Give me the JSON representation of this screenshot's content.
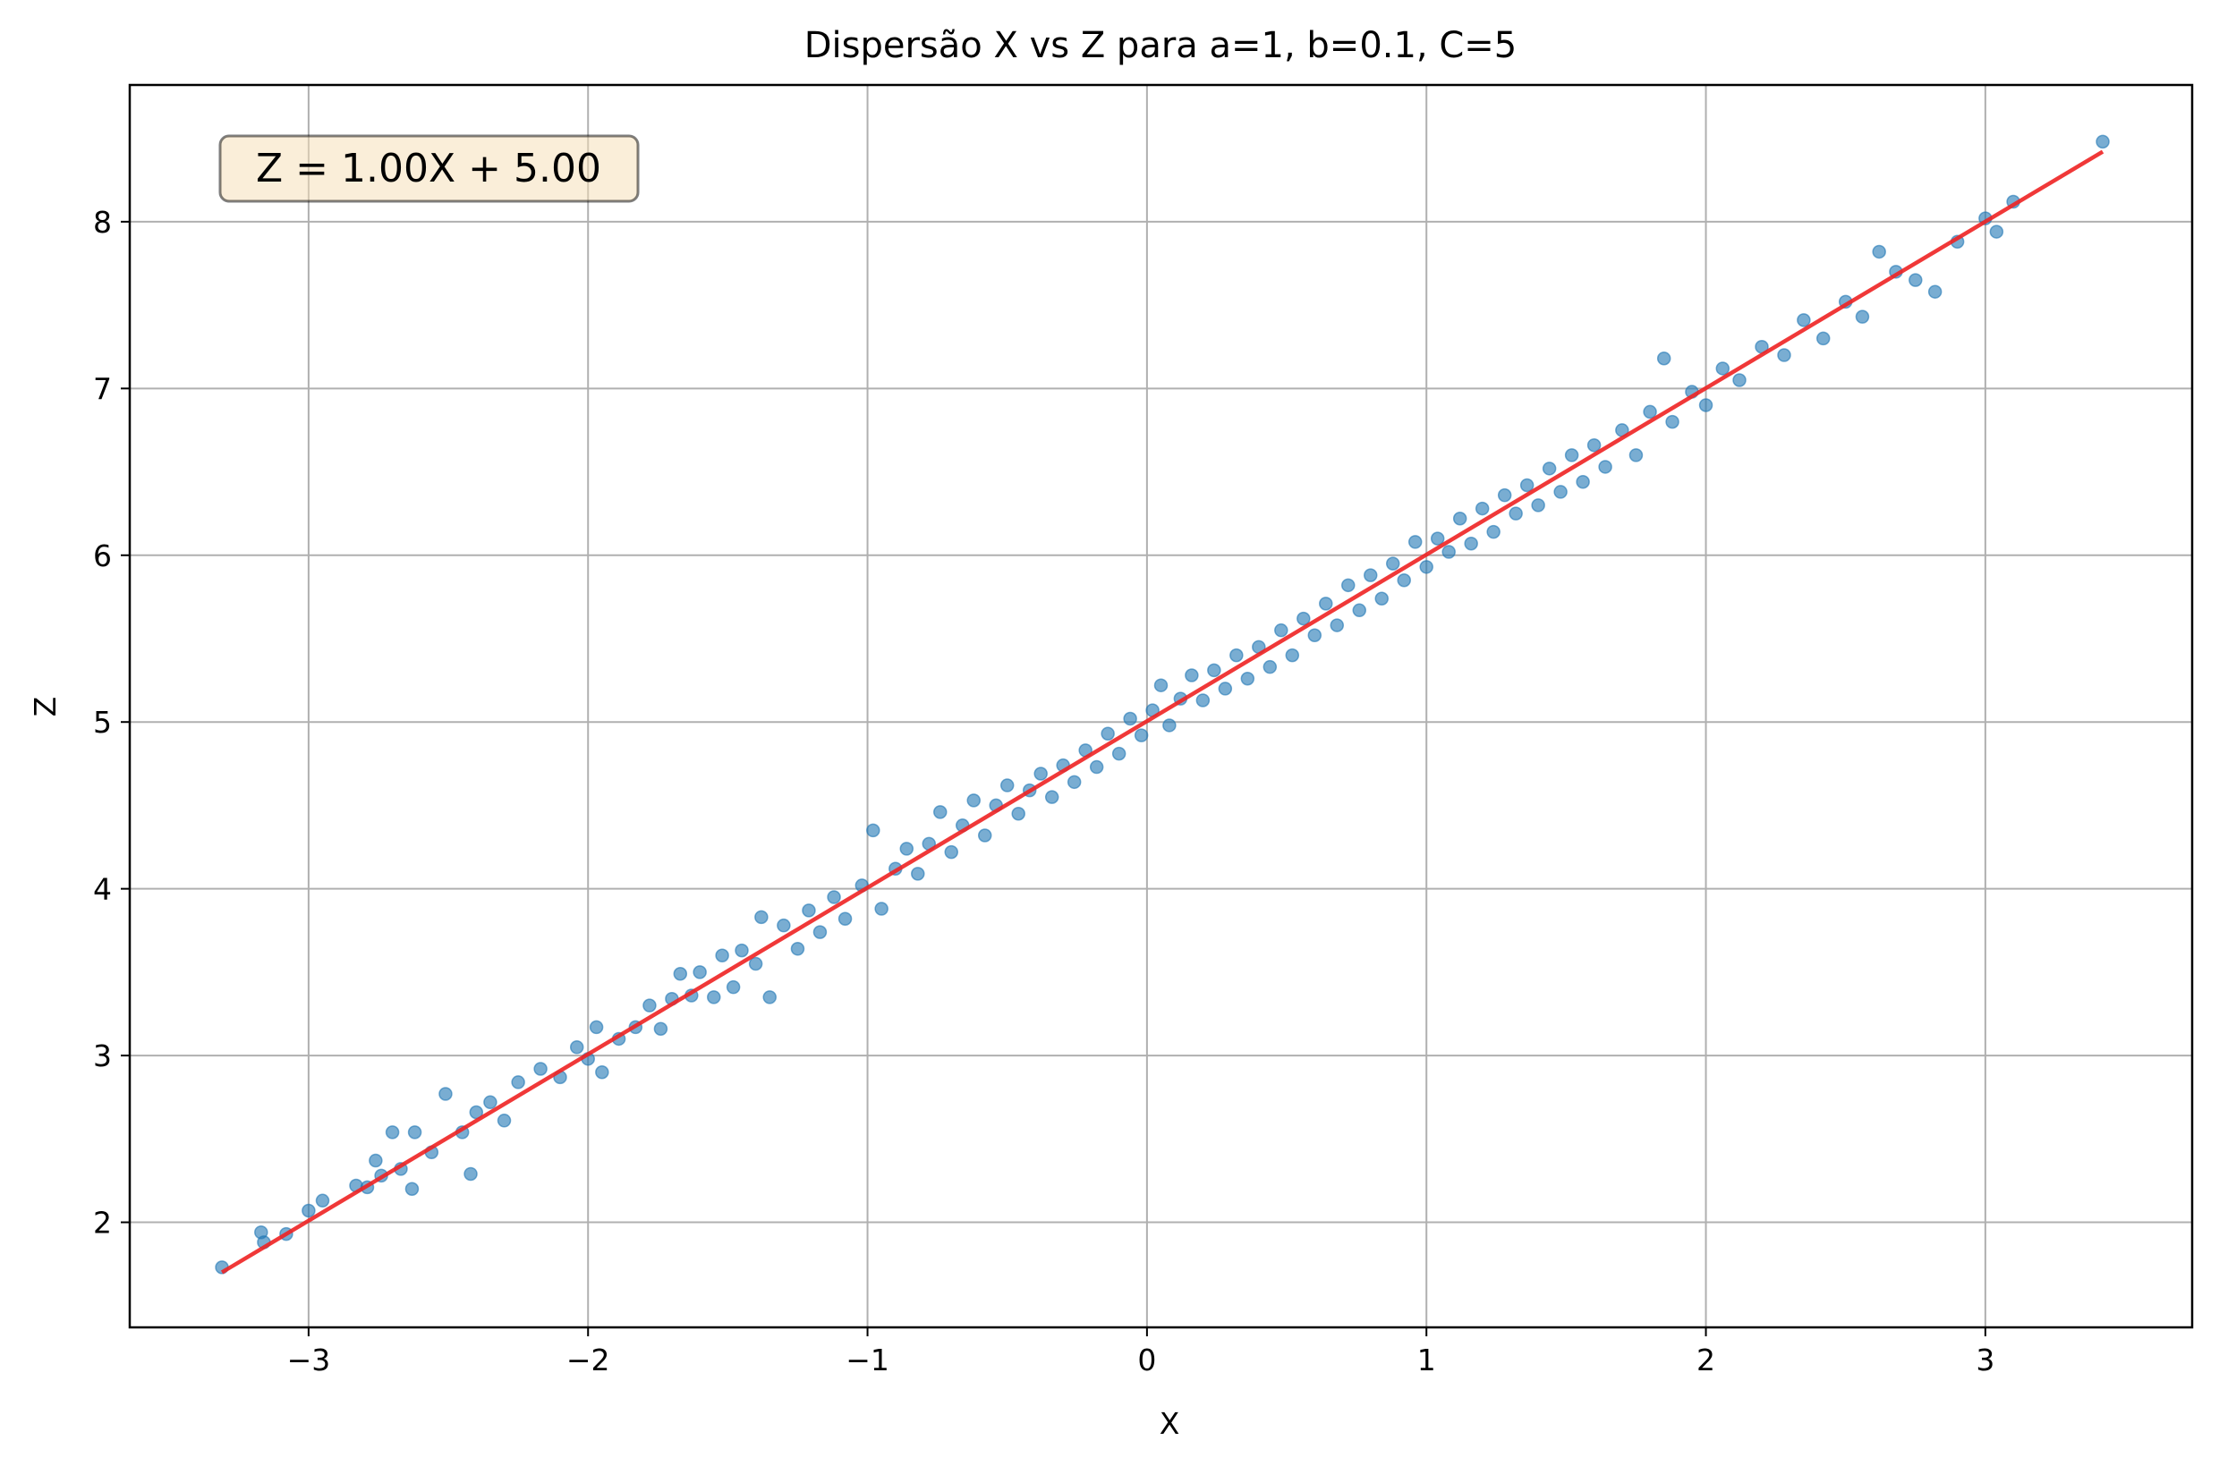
{
  "chart_data": {
    "type": "scatter",
    "title": "Dispersão X vs Z para a=1, b=0.1, C=5",
    "xlabel": "X",
    "ylabel": "Z",
    "xlim": [
      -3.64,
      3.74
    ],
    "ylim": [
      1.37,
      8.82
    ],
    "xticks": [
      -3,
      -2,
      -1,
      0,
      1,
      2,
      3
    ],
    "xtick_labels": [
      "−3",
      "−2",
      "−1",
      "0",
      "1",
      "2",
      "3"
    ],
    "yticks": [
      2,
      3,
      4,
      5,
      6,
      7,
      8
    ],
    "ytick_labels": [
      "2",
      "3",
      "4",
      "5",
      "6",
      "7",
      "8"
    ],
    "grid": true,
    "annotation": "Z = 1.00X + 5.00",
    "annotation_position": "top-left",
    "series": [
      {
        "kind": "scatter",
        "color": "#1f77b4",
        "alpha": 0.6,
        "points": [
          [
            -3.31,
            1.73
          ],
          [
            -3.17,
            1.94
          ],
          [
            -3.16,
            1.88
          ],
          [
            -3.08,
            1.93
          ],
          [
            -3.0,
            2.07
          ],
          [
            -2.95,
            2.13
          ],
          [
            -2.83,
            2.22
          ],
          [
            -2.79,
            2.21
          ],
          [
            -2.76,
            2.37
          ],
          [
            -2.74,
            2.28
          ],
          [
            -2.7,
            2.54
          ],
          [
            -2.67,
            2.32
          ],
          [
            -2.63,
            2.2
          ],
          [
            -2.62,
            2.54
          ],
          [
            -2.56,
            2.42
          ],
          [
            -2.51,
            2.77
          ],
          [
            -2.45,
            2.54
          ],
          [
            -2.42,
            2.29
          ],
          [
            -2.4,
            2.66
          ],
          [
            -2.35,
            2.72
          ],
          [
            -2.3,
            2.61
          ],
          [
            -2.25,
            2.84
          ],
          [
            -2.17,
            2.92
          ],
          [
            -2.1,
            2.87
          ],
          [
            -2.04,
            3.05
          ],
          [
            -2.0,
            2.98
          ],
          [
            -1.97,
            3.17
          ],
          [
            -1.95,
            2.9
          ],
          [
            -1.89,
            3.1
          ],
          [
            -1.83,
            3.17
          ],
          [
            -1.78,
            3.3
          ],
          [
            -1.74,
            3.16
          ],
          [
            -1.7,
            3.34
          ],
          [
            -1.67,
            3.49
          ],
          [
            -1.63,
            3.36
          ],
          [
            -1.6,
            3.5
          ],
          [
            -1.55,
            3.35
          ],
          [
            -1.52,
            3.6
          ],
          [
            -1.48,
            3.41
          ],
          [
            -1.45,
            3.63
          ],
          [
            -1.4,
            3.55
          ],
          [
            -1.38,
            3.83
          ],
          [
            -1.35,
            3.35
          ],
          [
            -1.3,
            3.78
          ],
          [
            -1.25,
            3.64
          ],
          [
            -1.21,
            3.87
          ],
          [
            -1.17,
            3.74
          ],
          [
            -1.12,
            3.95
          ],
          [
            -1.08,
            3.82
          ],
          [
            -1.02,
            4.02
          ],
          [
            -0.98,
            4.35
          ],
          [
            -0.95,
            3.88
          ],
          [
            -0.9,
            4.12
          ],
          [
            -0.86,
            4.24
          ],
          [
            -0.82,
            4.09
          ],
          [
            -0.78,
            4.27
          ],
          [
            -0.74,
            4.46
          ],
          [
            -0.7,
            4.22
          ],
          [
            -0.66,
            4.38
          ],
          [
            -0.62,
            4.53
          ],
          [
            -0.58,
            4.32
          ],
          [
            -0.54,
            4.5
          ],
          [
            -0.5,
            4.62
          ],
          [
            -0.46,
            4.45
          ],
          [
            -0.42,
            4.59
          ],
          [
            -0.38,
            4.69
          ],
          [
            -0.34,
            4.55
          ],
          [
            -0.3,
            4.74
          ],
          [
            -0.26,
            4.64
          ],
          [
            -0.22,
            4.83
          ],
          [
            -0.18,
            4.73
          ],
          [
            -0.14,
            4.93
          ],
          [
            -0.1,
            4.81
          ],
          [
            -0.06,
            5.02
          ],
          [
            -0.02,
            4.92
          ],
          [
            0.02,
            5.07
          ],
          [
            0.05,
            5.22
          ],
          [
            0.08,
            4.98
          ],
          [
            0.12,
            5.14
          ],
          [
            0.16,
            5.28
          ],
          [
            0.2,
            5.13
          ],
          [
            0.24,
            5.31
          ],
          [
            0.28,
            5.2
          ],
          [
            0.32,
            5.4
          ],
          [
            0.36,
            5.26
          ],
          [
            0.4,
            5.45
          ],
          [
            0.44,
            5.33
          ],
          [
            0.48,
            5.55
          ],
          [
            0.52,
            5.4
          ],
          [
            0.56,
            5.62
          ],
          [
            0.6,
            5.52
          ],
          [
            0.64,
            5.71
          ],
          [
            0.68,
            5.58
          ],
          [
            0.72,
            5.82
          ],
          [
            0.76,
            5.67
          ],
          [
            0.8,
            5.88
          ],
          [
            0.84,
            5.74
          ],
          [
            0.88,
            5.95
          ],
          [
            0.92,
            5.85
          ],
          [
            0.96,
            6.08
          ],
          [
            1.0,
            5.93
          ],
          [
            1.04,
            6.1
          ],
          [
            1.08,
            6.02
          ],
          [
            1.12,
            6.22
          ],
          [
            1.16,
            6.07
          ],
          [
            1.2,
            6.28
          ],
          [
            1.24,
            6.14
          ],
          [
            1.28,
            6.36
          ],
          [
            1.32,
            6.25
          ],
          [
            1.36,
            6.42
          ],
          [
            1.4,
            6.3
          ],
          [
            1.44,
            6.52
          ],
          [
            1.48,
            6.38
          ],
          [
            1.52,
            6.6
          ],
          [
            1.56,
            6.44
          ],
          [
            1.6,
            6.66
          ],
          [
            1.64,
            6.53
          ],
          [
            1.7,
            6.75
          ],
          [
            1.75,
            6.6
          ],
          [
            1.8,
            6.86
          ],
          [
            1.85,
            7.18
          ],
          [
            1.88,
            6.8
          ],
          [
            1.95,
            6.98
          ],
          [
            2.0,
            6.9
          ],
          [
            2.06,
            7.12
          ],
          [
            2.12,
            7.05
          ],
          [
            2.2,
            7.25
          ],
          [
            2.28,
            7.2
          ],
          [
            2.35,
            7.41
          ],
          [
            2.42,
            7.3
          ],
          [
            2.5,
            7.52
          ],
          [
            2.56,
            7.43
          ],
          [
            2.62,
            7.82
          ],
          [
            2.68,
            7.7
          ],
          [
            2.75,
            7.65
          ],
          [
            2.82,
            7.58
          ],
          [
            2.9,
            7.88
          ],
          [
            3.0,
            8.02
          ],
          [
            3.04,
            7.94
          ],
          [
            3.1,
            8.12
          ],
          [
            3.42,
            8.48
          ]
        ]
      },
      {
        "kind": "line",
        "color": "#ee2222",
        "x": [
          -3.31,
          3.42
        ],
        "y": [
          1.7,
          8.42
        ]
      }
    ]
  }
}
